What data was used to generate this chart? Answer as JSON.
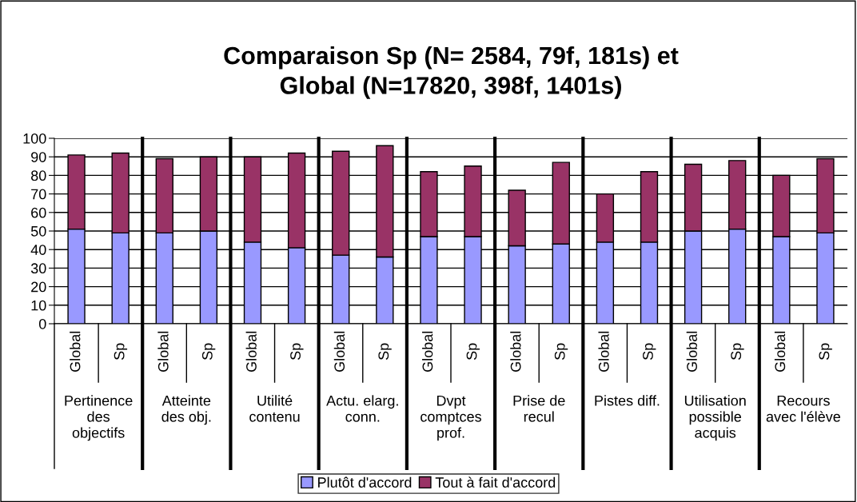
{
  "chart_data": {
    "type": "bar",
    "title": "Comparaison Sp (N= 2584, 79f, 181s) et\nGlobal (N=17820, 398f, 1401s)",
    "categories": [
      "Global",
      "Sp",
      "Global",
      "Sp",
      "Global",
      "Sp",
      "Global",
      "Sp",
      "Global",
      "Sp",
      "Global",
      "Sp",
      "Global",
      "Sp",
      "Global",
      "Sp",
      "Global",
      "Sp"
    ],
    "annotations": [
      "Pertinence\ndes\nobjectifs",
      "Atteinte\ndes obj.",
      "Utilité\ncontenu",
      "Actu. elarg.\nconn.",
      "Dvpt\ncomptces\nprof.",
      "Prise de\nrecul",
      "Pistes diff.",
      "Utilisation\npossible\nacquis",
      "Recours\navec l'élève"
    ],
    "stacked": true,
    "series": [
      {
        "name": "Plutôt d'accord",
        "color": "#9999ff",
        "values": [
          51,
          49,
          49,
          50,
          44,
          41,
          37,
          36,
          47,
          47,
          42,
          43,
          44,
          44,
          50,
          51,
          47,
          49
        ]
      },
      {
        "name": "Tout à fait d'accord",
        "color": "#993366",
        "values": [
          40,
          43,
          40,
          40,
          46,
          51,
          56,
          60,
          35,
          38,
          30,
          44,
          26,
          38,
          36,
          37,
          33,
          40
        ]
      }
    ],
    "ylim": [
      0,
      100
    ],
    "yticks": [
      0,
      10,
      20,
      30,
      40,
      50,
      60,
      70,
      80,
      90,
      100
    ],
    "grid": "y",
    "legend": "bottom"
  }
}
